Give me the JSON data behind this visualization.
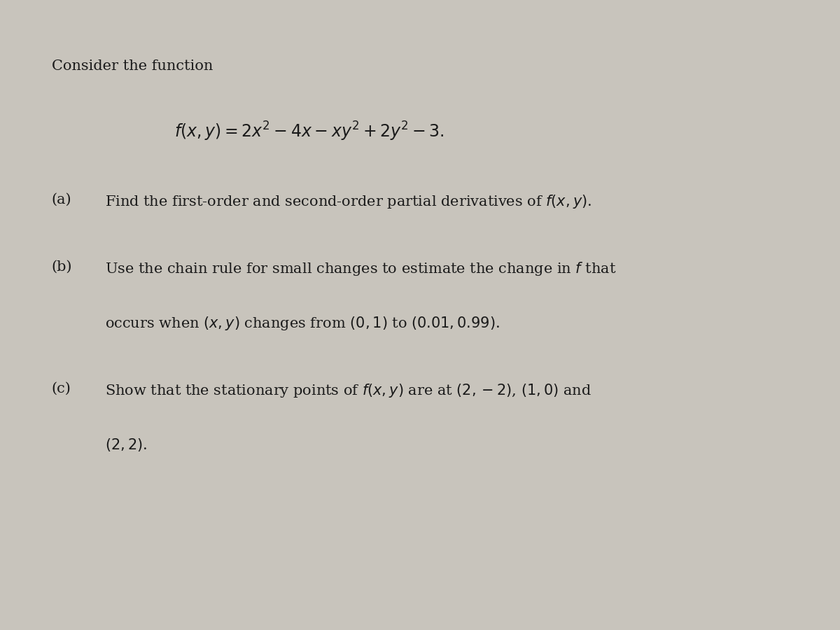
{
  "background_color": "#c8c4bc",
  "text_color": "#1a1a1a",
  "fig_width": 12.0,
  "fig_height": 9.0,
  "intro_text": "Consider the function",
  "formula": "$f(x, y) = 2x^2 - 4x - xy^2 + 2y^2 - 3.$",
  "part_a_label": "(a)",
  "part_a_text": "Find the first-order and second-order partial derivatives of $f(x, y)$.",
  "part_b_label": "(b)",
  "part_b_line1": "Use the chain rule for small changes to estimate the change in $f$ that",
  "part_b_line2": "occurs when $(x, y)$ changes from $(0, 1)$ to $(0.01, 0.99)$.",
  "part_c_label": "(c)",
  "part_c_line1": "Show that the stationary points of $f(x, y)$ are at $(2, -2)$, $(1, 0)$ and",
  "part_c_line2": "$(2, 2)$.",
  "intro_fontsize": 15,
  "formula_fontsize": 17,
  "body_fontsize": 15
}
